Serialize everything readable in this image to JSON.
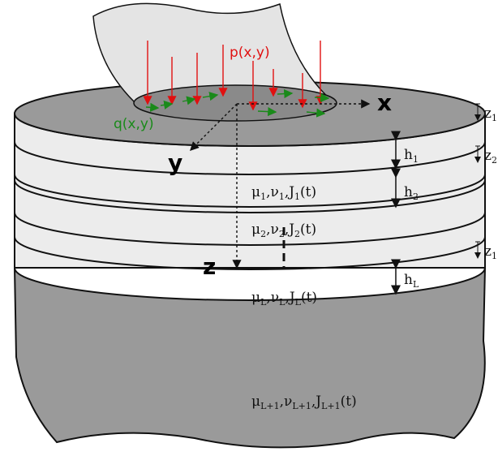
{
  "load": {
    "normal": "p(x,y)",
    "tangential": "q(x,y)"
  },
  "axes": {
    "x": "x",
    "y": "y",
    "z": "z"
  },
  "layers": [
    {
      "params": [
        "μ",
        "1",
        ",ν",
        "1",
        ",J",
        "1",
        "(t)"
      ],
      "thickness": [
        "h",
        "1"
      ],
      "depth": [
        "z",
        "1"
      ]
    },
    {
      "params": [
        "μ",
        "2",
        ",ν",
        "2",
        ",J",
        "2",
        "(t)"
      ],
      "thickness": [
        "h",
        "2"
      ],
      "depth": [
        "z",
        "2"
      ]
    },
    {
      "params": [
        "μ",
        "L",
        ",ν",
        "L",
        ",J",
        "L",
        "(t)"
      ],
      "thickness": [
        "h",
        "L"
      ],
      "depth": [
        "z",
        "1"
      ]
    }
  ],
  "halfspace": {
    "params": [
      "μ",
      "L+1",
      ",ν",
      "L+1",
      ",J",
      "L+1",
      "(t)"
    ]
  }
}
